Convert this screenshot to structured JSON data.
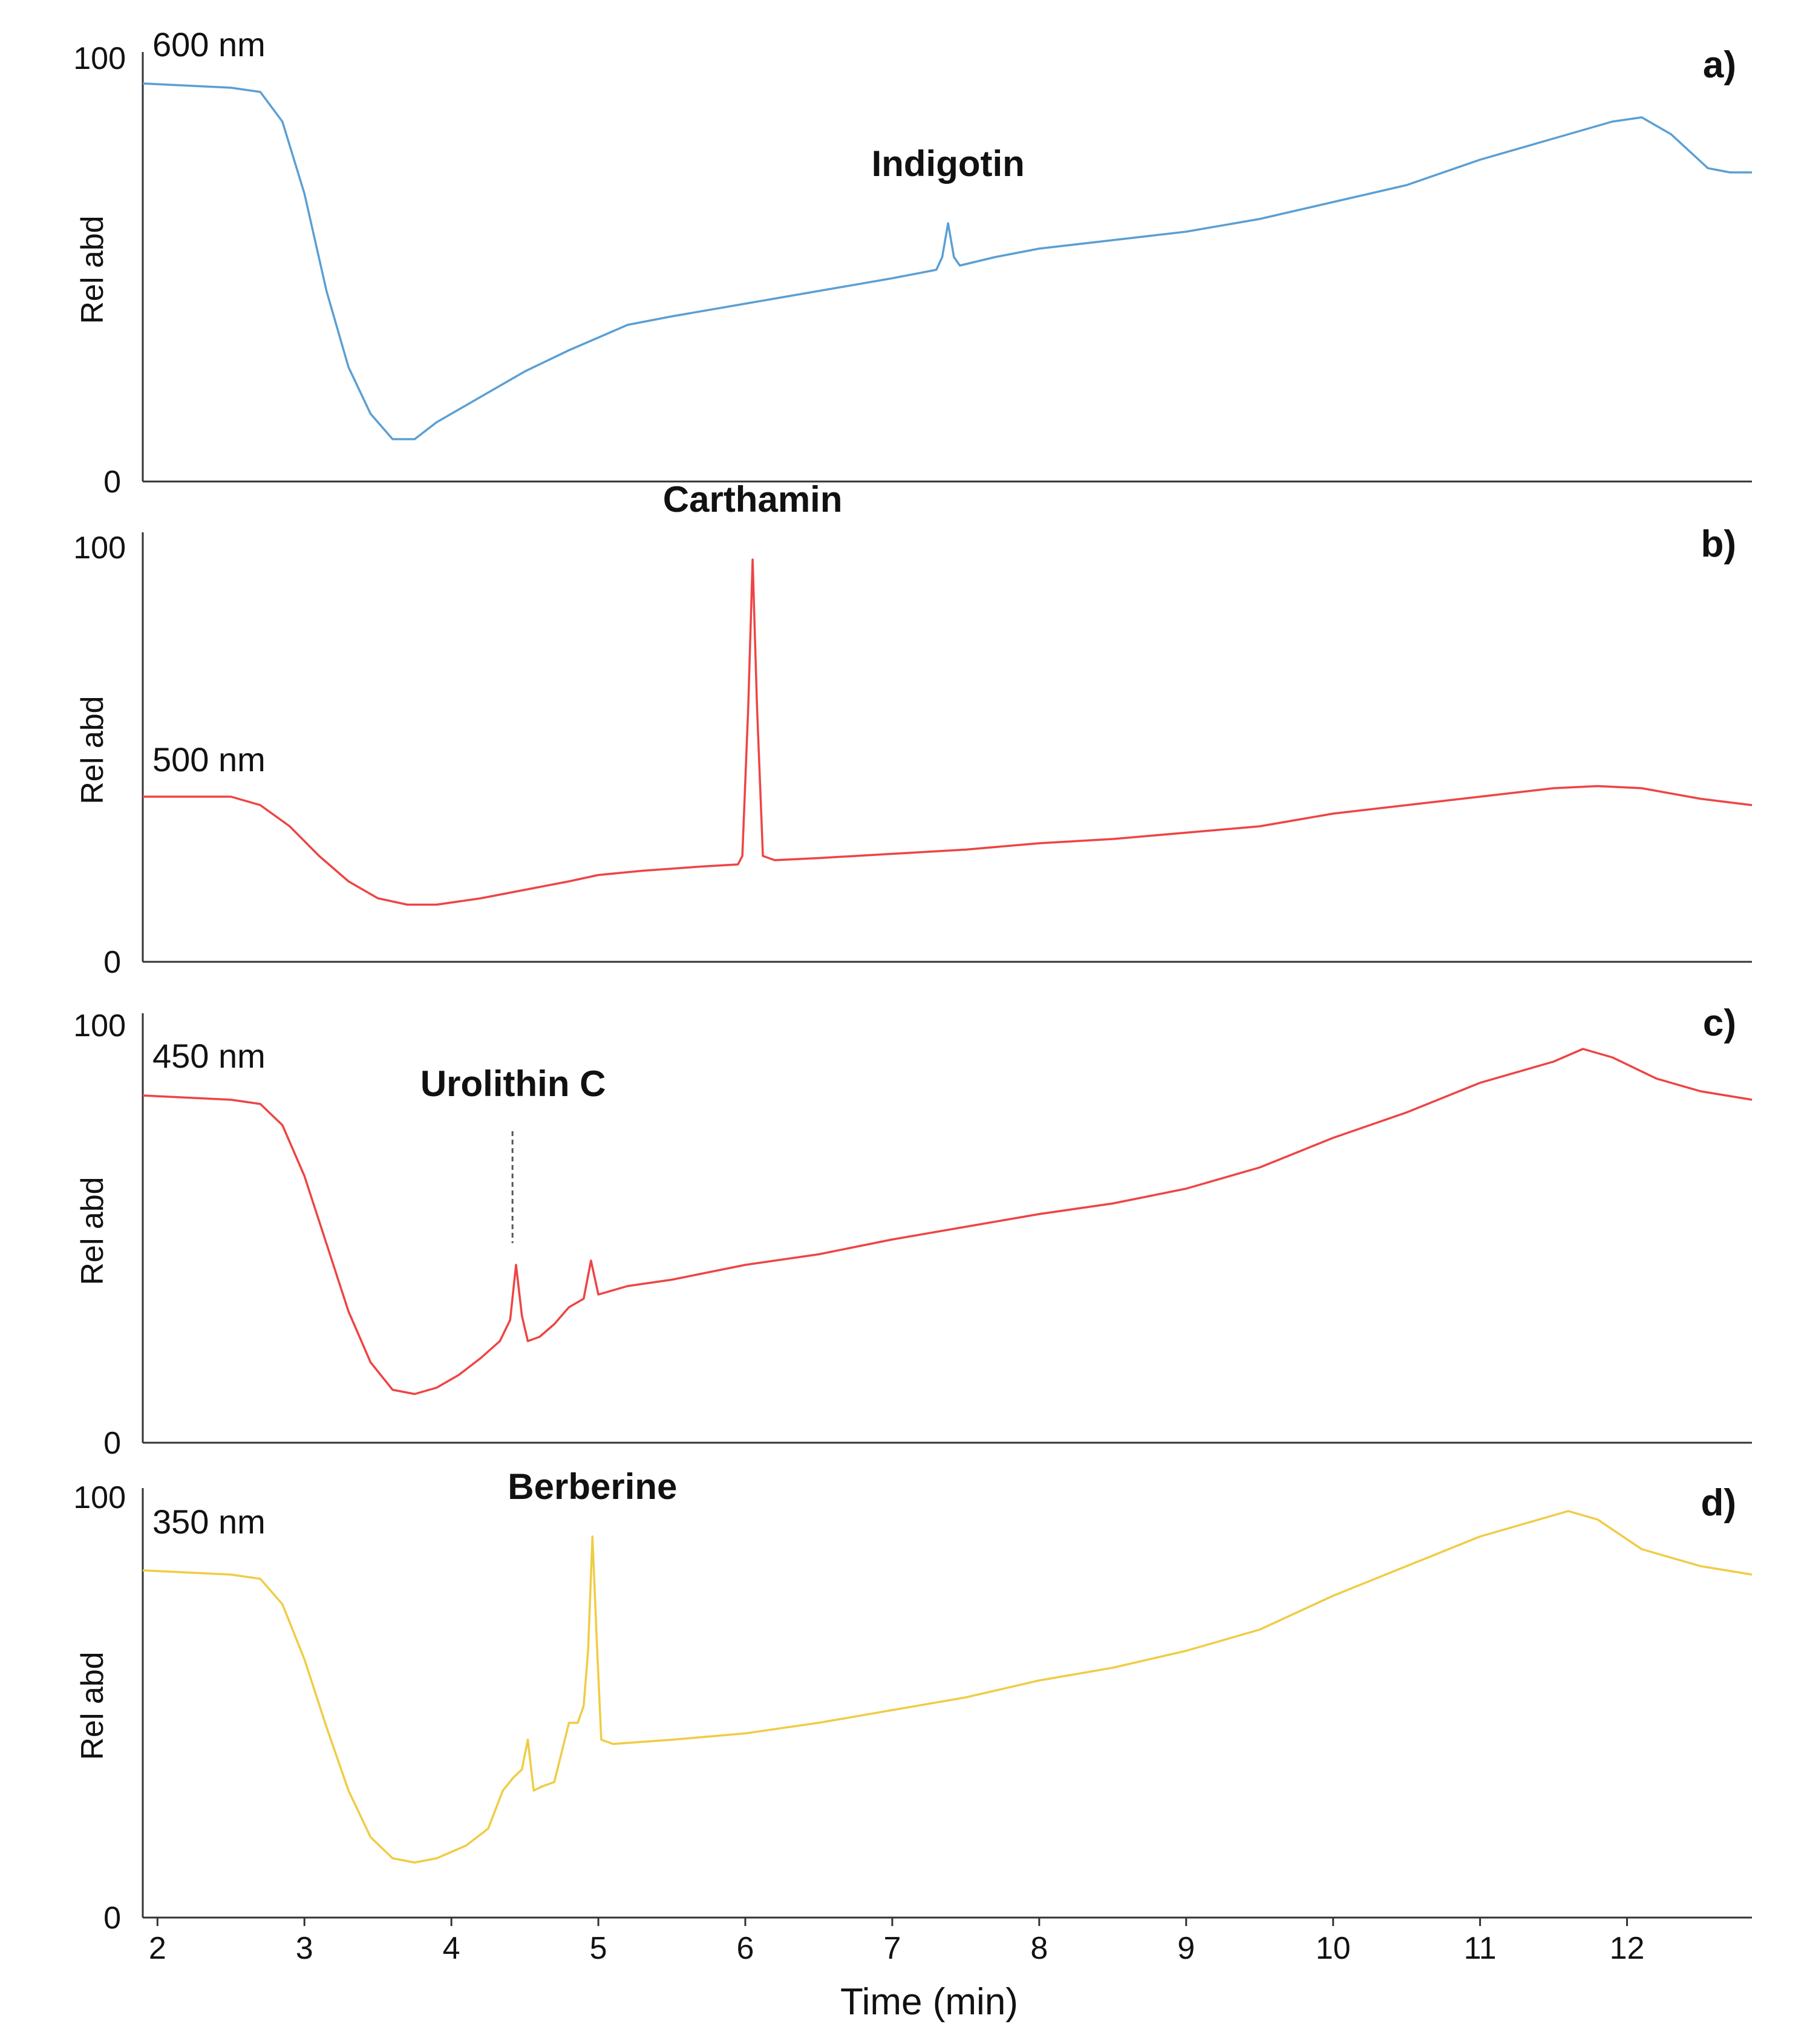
{
  "chart_data": {
    "type": "line",
    "xlabel": "Time (min)",
    "xlim": [
      1.9,
      12.85
    ],
    "xticks": [
      2,
      3,
      4,
      5,
      6,
      7,
      8,
      9,
      10,
      11,
      12
    ],
    "ylim": [
      0,
      100
    ],
    "ytick_labels": [
      "100",
      "0"
    ],
    "panels": [
      {
        "id": "a)",
        "wavelength": "600 nm",
        "ylabel": "Rel abd",
        "color": "#5a9fd4",
        "annotations": [
          {
            "label": "Indigotin",
            "x": 7.38,
            "dashed_leader": false
          }
        ],
        "points": [
          [
            1.9,
            94
          ],
          [
            2.5,
            93
          ],
          [
            2.7,
            92
          ],
          [
            2.85,
            85
          ],
          [
            3.0,
            68
          ],
          [
            3.15,
            45
          ],
          [
            3.3,
            27
          ],
          [
            3.45,
            16
          ],
          [
            3.6,
            10
          ],
          [
            3.75,
            10
          ],
          [
            3.9,
            14
          ],
          [
            4.1,
            18
          ],
          [
            4.3,
            22
          ],
          [
            4.5,
            26
          ],
          [
            4.8,
            31
          ],
          [
            5.0,
            34
          ],
          [
            5.2,
            37
          ],
          [
            5.5,
            39
          ],
          [
            6.0,
            42
          ],
          [
            6.5,
            45
          ],
          [
            7.0,
            48
          ],
          [
            7.3,
            50
          ],
          [
            7.34,
            53
          ],
          [
            7.38,
            61
          ],
          [
            7.42,
            53
          ],
          [
            7.46,
            51
          ],
          [
            7.7,
            53
          ],
          [
            8.0,
            55
          ],
          [
            8.5,
            57
          ],
          [
            9.0,
            59
          ],
          [
            9.5,
            62
          ],
          [
            10.0,
            66
          ],
          [
            10.5,
            70
          ],
          [
            11.0,
            76
          ],
          [
            11.5,
            81
          ],
          [
            11.9,
            85
          ],
          [
            12.1,
            86
          ],
          [
            12.3,
            82
          ],
          [
            12.55,
            74
          ],
          [
            12.7,
            73
          ],
          [
            12.85,
            73
          ]
        ]
      },
      {
        "id": "b)",
        "wavelength": "500 nm",
        "ylabel": "Rel abd",
        "color": "#ee4444",
        "annotations": [
          {
            "label": "Carthamin",
            "x": 6.05,
            "dashed_leader": false
          }
        ],
        "points": [
          [
            1.9,
            39
          ],
          [
            2.5,
            39
          ],
          [
            2.7,
            37
          ],
          [
            2.9,
            32
          ],
          [
            3.1,
            25
          ],
          [
            3.3,
            19
          ],
          [
            3.5,
            15
          ],
          [
            3.7,
            13.5
          ],
          [
            3.9,
            13.5
          ],
          [
            4.2,
            15
          ],
          [
            4.5,
            17
          ],
          [
            4.8,
            19
          ],
          [
            5.0,
            20.5
          ],
          [
            5.3,
            21.5
          ],
          [
            5.7,
            22.5
          ],
          [
            5.95,
            23
          ],
          [
            5.98,
            25
          ],
          [
            6.02,
            60
          ],
          [
            6.05,
            95
          ],
          [
            6.08,
            60
          ],
          [
            6.12,
            25
          ],
          [
            6.2,
            24
          ],
          [
            6.5,
            24.5
          ],
          [
            7.0,
            25.5
          ],
          [
            7.5,
            26.5
          ],
          [
            8.0,
            28
          ],
          [
            8.5,
            29
          ],
          [
            9.0,
            30.5
          ],
          [
            9.5,
            32
          ],
          [
            10.0,
            35
          ],
          [
            10.5,
            37
          ],
          [
            11.0,
            39
          ],
          [
            11.5,
            41
          ],
          [
            11.8,
            41.5
          ],
          [
            12.1,
            41
          ],
          [
            12.5,
            38.5
          ],
          [
            12.85,
            37
          ]
        ]
      },
      {
        "id": "c)",
        "wavelength": "450 nm",
        "ylabel": "Rel abd",
        "color": "#ee4444",
        "annotations": [
          {
            "label": "Urolithin C",
            "x": 4.42,
            "dashed_leader": true
          }
        ],
        "points": [
          [
            1.9,
            82
          ],
          [
            2.5,
            81
          ],
          [
            2.7,
            80
          ],
          [
            2.85,
            75
          ],
          [
            3.0,
            63
          ],
          [
            3.15,
            47
          ],
          [
            3.3,
            31
          ],
          [
            3.45,
            19
          ],
          [
            3.6,
            12.5
          ],
          [
            3.75,
            11.5
          ],
          [
            3.9,
            13
          ],
          [
            4.05,
            16
          ],
          [
            4.2,
            20
          ],
          [
            4.33,
            24
          ],
          [
            4.4,
            29
          ],
          [
            4.44,
            42
          ],
          [
            4.48,
            30
          ],
          [
            4.52,
            24
          ],
          [
            4.6,
            25
          ],
          [
            4.7,
            28
          ],
          [
            4.8,
            32
          ],
          [
            4.9,
            34
          ],
          [
            4.95,
            43
          ],
          [
            5.0,
            35
          ],
          [
            5.2,
            37
          ],
          [
            5.5,
            38.5
          ],
          [
            6.0,
            42
          ],
          [
            6.5,
            44.5
          ],
          [
            7.0,
            48
          ],
          [
            7.5,
            51
          ],
          [
            8.0,
            54
          ],
          [
            8.5,
            56.5
          ],
          [
            9.0,
            60
          ],
          [
            9.5,
            65
          ],
          [
            10.0,
            72
          ],
          [
            10.5,
            78
          ],
          [
            11.0,
            85
          ],
          [
            11.5,
            90
          ],
          [
            11.7,
            93
          ],
          [
            11.9,
            91
          ],
          [
            12.2,
            86
          ],
          [
            12.5,
            83
          ],
          [
            12.85,
            81
          ]
        ]
      },
      {
        "id": "d)",
        "wavelength": "350 nm",
        "ylabel": "Rel abd",
        "color": "#f0cc44",
        "annotations": [
          {
            "label": "Berberine",
            "x": 4.96,
            "dashed_leader": false
          }
        ],
        "points": [
          [
            1.9,
            82
          ],
          [
            2.5,
            81
          ],
          [
            2.7,
            80
          ],
          [
            2.85,
            74
          ],
          [
            3.0,
            61
          ],
          [
            3.15,
            45
          ],
          [
            3.3,
            30
          ],
          [
            3.45,
            19
          ],
          [
            3.6,
            14
          ],
          [
            3.75,
            13
          ],
          [
            3.9,
            14
          ],
          [
            4.1,
            17
          ],
          [
            4.25,
            21
          ],
          [
            4.35,
            30
          ],
          [
            4.42,
            33
          ],
          [
            4.48,
            35
          ],
          [
            4.52,
            42
          ],
          [
            4.56,
            30
          ],
          [
            4.62,
            31
          ],
          [
            4.7,
            32
          ],
          [
            4.8,
            46
          ],
          [
            4.86,
            46
          ],
          [
            4.9,
            50
          ],
          [
            4.93,
            63
          ],
          [
            4.96,
            90
          ],
          [
            4.99,
            65
          ],
          [
            5.02,
            42
          ],
          [
            5.1,
            41
          ],
          [
            5.5,
            42
          ],
          [
            6.0,
            43.5
          ],
          [
            6.5,
            46
          ],
          [
            7.0,
            49
          ],
          [
            7.5,
            52
          ],
          [
            8.0,
            56
          ],
          [
            8.5,
            59
          ],
          [
            9.0,
            63
          ],
          [
            9.5,
            68
          ],
          [
            10.0,
            76
          ],
          [
            10.5,
            83
          ],
          [
            11.0,
            90
          ],
          [
            11.3,
            93
          ],
          [
            11.6,
            96
          ],
          [
            11.8,
            94
          ],
          [
            12.1,
            87
          ],
          [
            12.5,
            83
          ],
          [
            12.85,
            81
          ]
        ]
      }
    ]
  }
}
